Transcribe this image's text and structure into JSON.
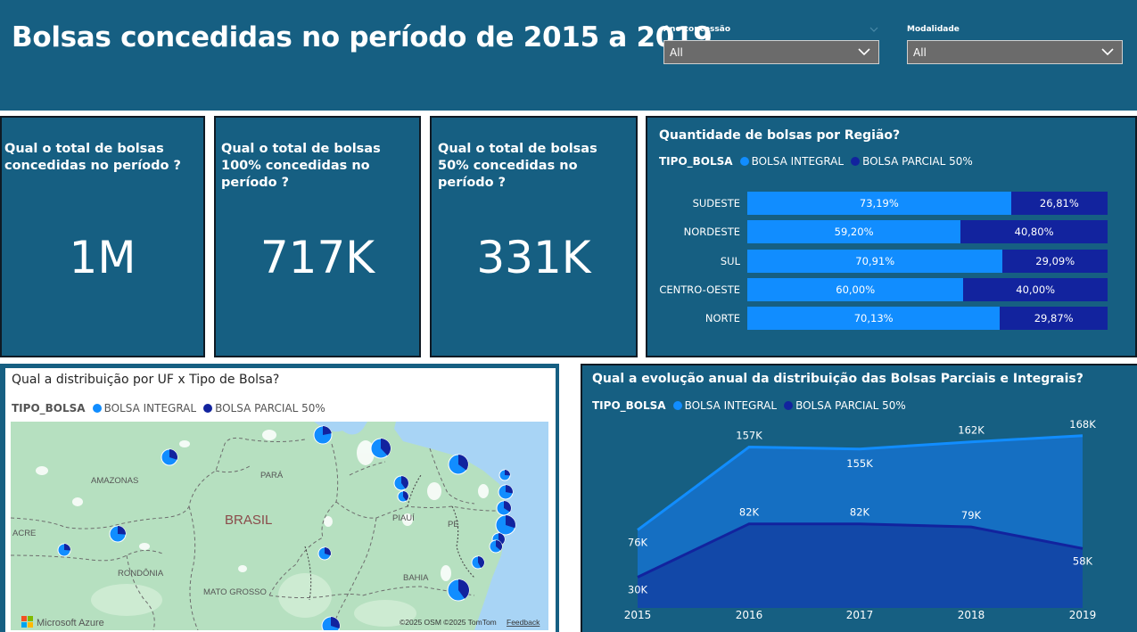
{
  "header": {
    "title": "Bolsas concedidas no período de 2015 a 2019",
    "filters": [
      {
        "label": "Ano concessão",
        "value": "All"
      },
      {
        "label": "Modalidade",
        "value": "All"
      }
    ]
  },
  "kpis": [
    {
      "question": "Qual o total de bolsas concedidas no período ?",
      "value": "1M"
    },
    {
      "question": "Qual o total de bolsas 100% concedidas no período ?",
      "value": "717K"
    },
    {
      "question": "Qual o total de bolsas 50% concedidas no período ?",
      "value": "331K"
    }
  ],
  "legend": {
    "title": "TIPO_BOLSA",
    "integral": "BOLSA INTEGRAL",
    "parcial": "BOLSA PARCIAL 50%"
  },
  "colors": {
    "integral": "#118dff",
    "parcial": "#12239e",
    "card_bg": "#165f82",
    "map_land": "#b6e0c0",
    "map_water": "#a8d4f5"
  },
  "chart_data": [
    {
      "type": "bar",
      "title": "Quantidade de bolsas por Região?",
      "orientation": "horizontal-100%-stacked",
      "categories": [
        "SUDESTE",
        "NORDESTE",
        "SUL",
        "CENTRO-OESTE",
        "NORTE"
      ],
      "series": [
        {
          "name": "BOLSA INTEGRAL",
          "values": [
            73.19,
            59.2,
            70.91,
            60.0,
            70.13
          ]
        },
        {
          "name": "BOLSA PARCIAL 50%",
          "values": [
            26.81,
            40.8,
            29.09,
            40.0,
            29.87
          ]
        }
      ],
      "labels": {
        "integral": [
          "73,19%",
          "59,20%",
          "70,91%",
          "60,00%",
          "70,13%"
        ],
        "parcial": [
          "26,81%",
          "40,80%",
          "29,09%",
          "40,00%",
          "29,87%"
        ]
      },
      "xlim": [
        0,
        100
      ]
    },
    {
      "type": "area",
      "title": "Qual a evolução anual da distribuição das Bolsas Parciais e Integrais?",
      "x": [
        "2015",
        "2016",
        "2017",
        "2018",
        "2019"
      ],
      "series": [
        {
          "name": "BOLSA INTEGRAL",
          "values": [
            76,
            157,
            155,
            162,
            168
          ],
          "labels": [
            "76K",
            "157K",
            "155K",
            "162K",
            "168K"
          ]
        },
        {
          "name": "BOLSA PARCIAL 50%",
          "values": [
            30,
            82,
            82,
            79,
            58
          ],
          "labels": [
            "30K",
            "82K",
            "82K",
            "79K",
            "58K"
          ]
        }
      ],
      "ylim": [
        0,
        180
      ]
    }
  ],
  "map": {
    "title": "Qual a distribuição por UF x Tipo de Bolsa?",
    "place_labels": [
      "AMAZONAS",
      "PARÁ",
      "BRASIL",
      "PIAUÍ",
      "PE",
      "ACRE",
      "RONDÔNIA",
      "MATO GROSSO",
      "BAHIA"
    ],
    "attribution": "©2025 OSM ©2025 TomTom",
    "feedback": "Feedback",
    "provider": "Microsoft Azure",
    "pies": [
      {
        "integral_share": 0.7
      },
      {
        "integral_share": 0.78
      },
      {
        "integral_share": 0.62
      },
      {
        "integral_share": 0.65
      },
      {
        "integral_share": 0.6
      },
      {
        "integral_share": 0.72
      },
      {
        "integral_share": 0.66
      },
      {
        "integral_share": 0.7
      },
      {
        "integral_share": 0.6
      },
      {
        "integral_share": 0.74
      },
      {
        "integral_share": 0.74
      },
      {
        "integral_share": 0.7
      },
      {
        "integral_share": 0.64
      },
      {
        "integral_share": 0.58
      },
      {
        "integral_share": 0.6
      },
      {
        "integral_share": 0.7
      },
      {
        "integral_share": 0.74
      },
      {
        "integral_share": 0.6
      }
    ]
  }
}
